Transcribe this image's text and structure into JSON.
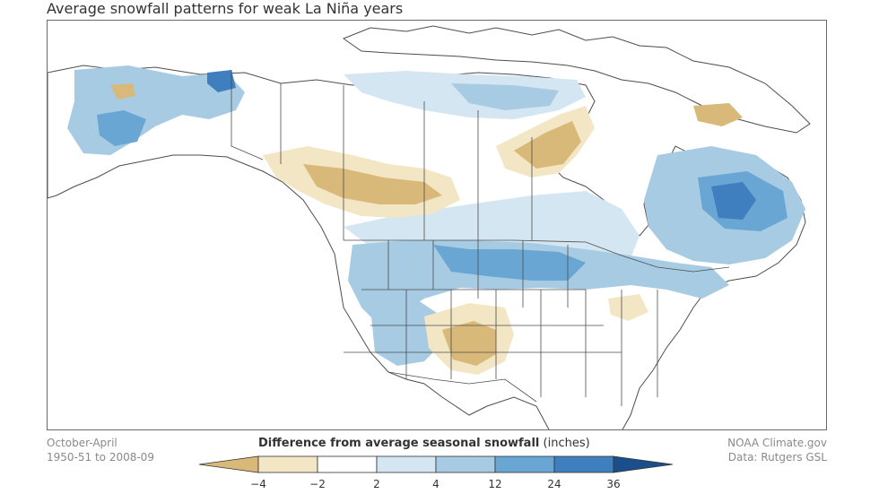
{
  "title": "Average snowfall patterns for weak La Niña years",
  "notes": {
    "left_line1": "October-April",
    "left_line2": "1950-51 to 2008-09",
    "right_line1": "NOAA Climate.gov",
    "right_line2": "Data: Rutgers GSL"
  },
  "legend": {
    "title_bold": "Difference from average seasonal snowfall",
    "title_units": "(inches)",
    "ticks": [
      "−4",
      "−2",
      "2",
      "4",
      "12",
      "24",
      "36"
    ],
    "colors": {
      "below_4": "#d9b97a",
      "m4_m2": "#f3e6c4",
      "m2_2": "#ffffff",
      "2_4": "#d4e6f1",
      "4_12": "#a6cbe3",
      "12_24": "#6aa6d4",
      "24_36": "#3f7fbf",
      "above_36": "#1a4f8c"
    }
  },
  "map": {
    "colors": {
      "tan_dark": "#d9b97a",
      "tan_light": "#f3e6c4",
      "blue_light": "#d4e6f1",
      "blue_med": "#a6cbe3",
      "blue_dark": "#6aa6d4",
      "blue_deep": "#3f7fbf",
      "border": "#4d4d4d"
    }
  }
}
